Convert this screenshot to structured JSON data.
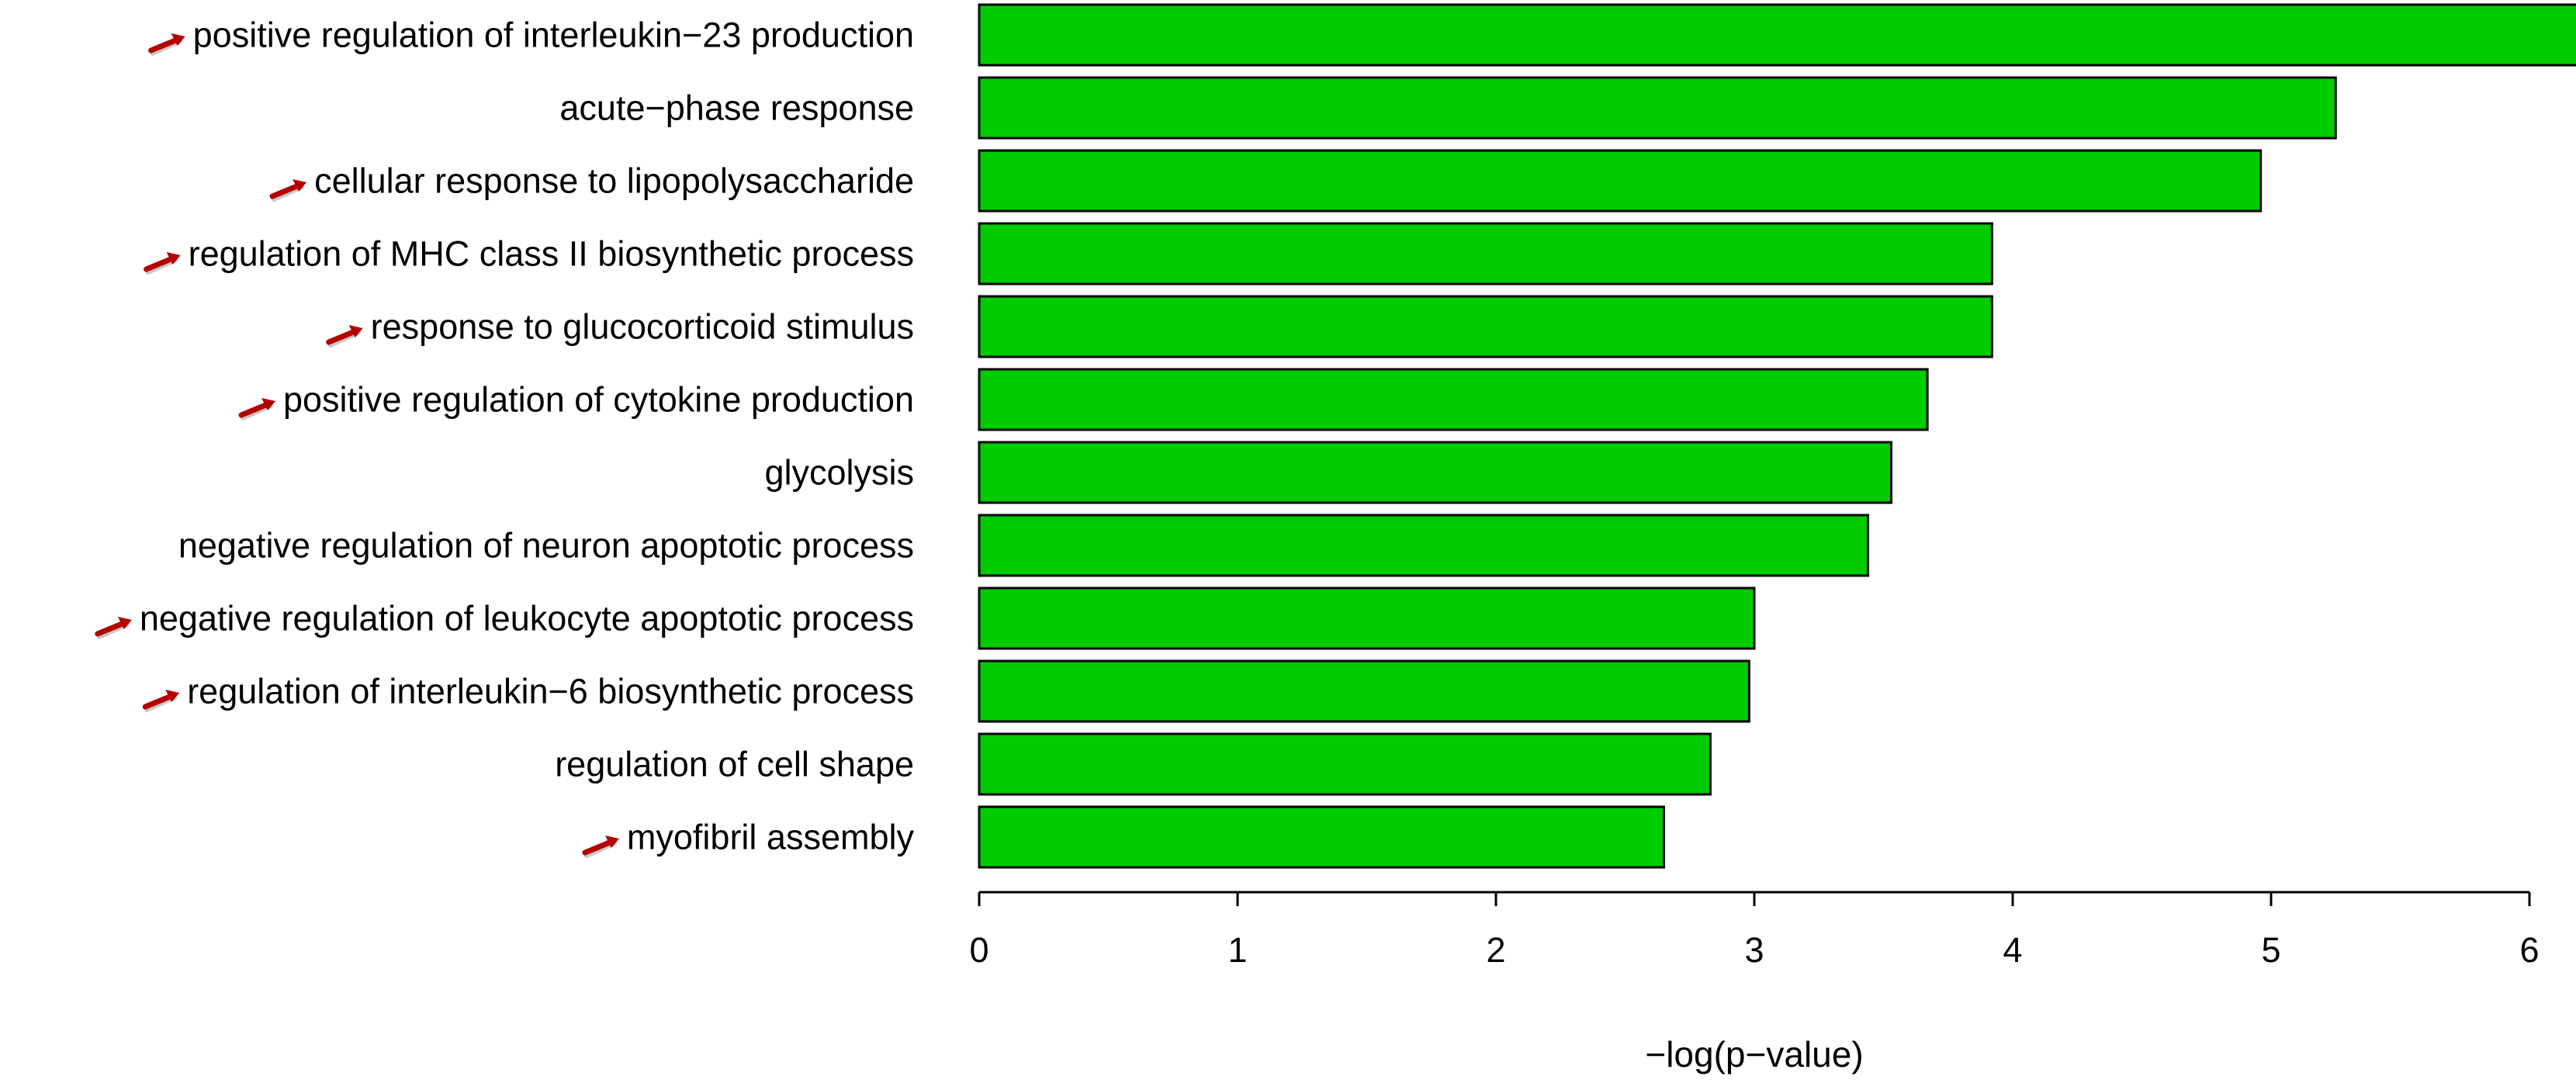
{
  "chart_data": {
    "type": "bar",
    "orientation": "horizontal",
    "title": "",
    "xlabel": "−log(p−value)",
    "ylabel": "",
    "xlim": [
      0,
      6.2
    ],
    "x_ticks": [
      "0",
      "1",
      "2",
      "3",
      "4",
      "5",
      "6"
    ],
    "grid": false,
    "legend": "none",
    "bar_color": "#00cc00",
    "bar_stroke": "#000000",
    "marker_color": "#b40000",
    "categories": [
      "positive regulation of interleukin−23 production",
      "acute−phase response",
      "cellular response to lipopolysaccharide",
      "regulation of MHC class II biosynthetic process",
      "response to glucocorticoid stimulus",
      "positive regulation of cytokine production",
      "glycolysis",
      "negative regulation of neuron apoptotic process",
      "negative regulation of leukocyte apoptotic process",
      "regulation of interleukin−6 biosynthetic process",
      "regulation of cell shape",
      "myofibril assembly"
    ],
    "values": [
      6.19,
      5.25,
      4.96,
      3.92,
      3.92,
      3.67,
      3.53,
      3.44,
      3.0,
      2.98,
      2.83,
      2.65
    ],
    "marked": [
      true,
      false,
      true,
      true,
      true,
      true,
      false,
      false,
      true,
      true,
      false,
      true
    ]
  }
}
